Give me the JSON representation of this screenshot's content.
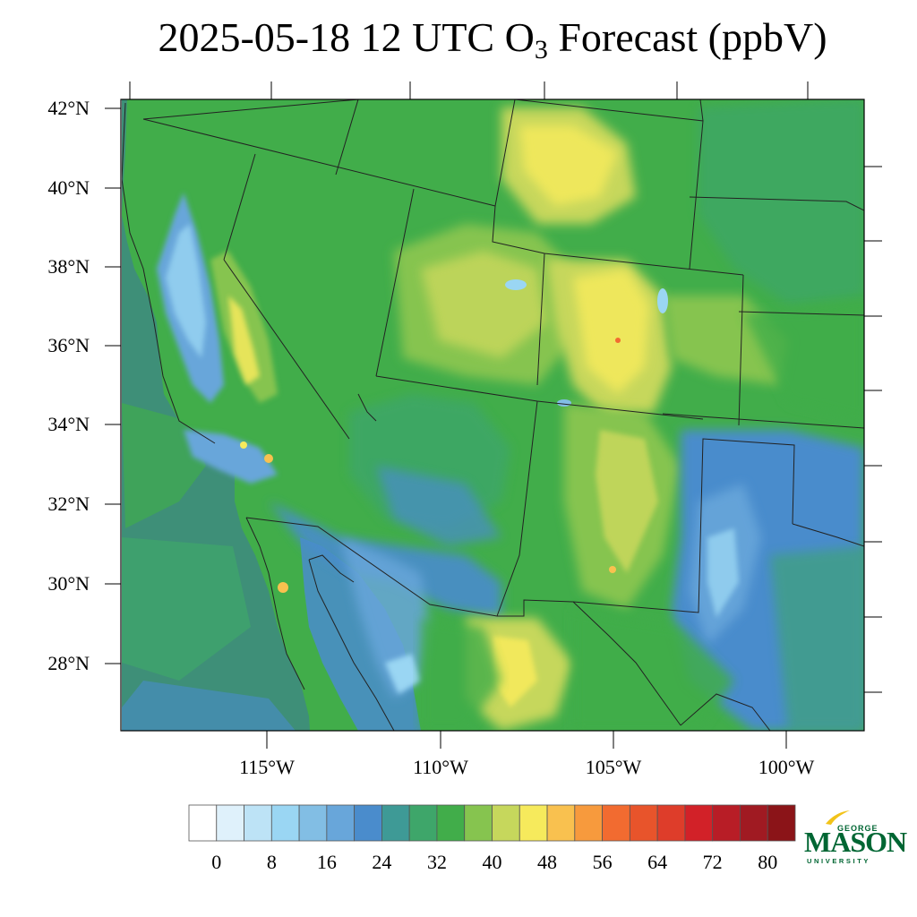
{
  "title": {
    "prefix": "2025-05-18 12 UTC O",
    "subscript": "3",
    "suffix": " Forecast (ppbV)"
  },
  "map": {
    "lat_labels": [
      "42°N",
      "40°N",
      "38°N",
      "36°N",
      "34°N",
      "32°N",
      "30°N",
      "28°N"
    ],
    "lon_labels": [
      "115°W",
      "110°W",
      "105°W",
      "100°W"
    ],
    "lat_range": [
      26.4,
      42.3
    ],
    "lon_range": [
      -119.2,
      -97.8
    ],
    "colors": {
      "ocean": "#3e8f78",
      "low_blue": "#4a8ccc",
      "mid_green": "#41ad4a",
      "light_green": "#86c44f",
      "yellow": "#e6e45a",
      "border": "#222222"
    }
  },
  "colorbar": {
    "labels": [
      "0",
      "8",
      "16",
      "24",
      "32",
      "40",
      "48",
      "56",
      "64",
      "72",
      "80"
    ],
    "colors": [
      "#ffffff",
      "#dff1fb",
      "#bde3f6",
      "#9ad6f3",
      "#82bee4",
      "#68a6da",
      "#4a8ccc",
      "#3e9a96",
      "#3ea66a",
      "#41ad4a",
      "#86c44f",
      "#c6d75c",
      "#f6ea5c",
      "#f9c14f",
      "#f79a3d",
      "#f26b30",
      "#e8542b",
      "#de3d2a",
      "#d22128",
      "#b81d26",
      "#a01a22",
      "#8b1418"
    ]
  },
  "logo": {
    "top_line": "GEORGE",
    "main": "MASON",
    "bottom_line": "UNIVERSITY"
  }
}
